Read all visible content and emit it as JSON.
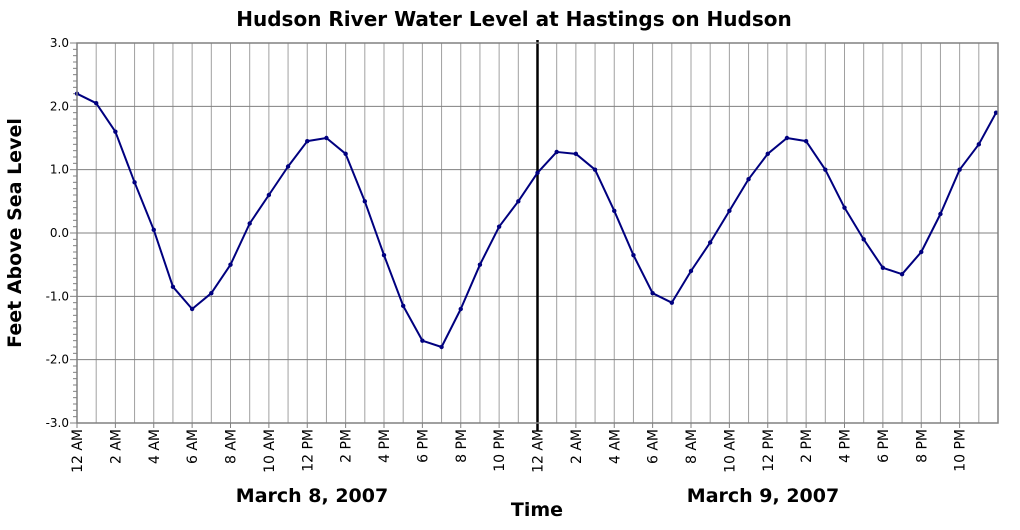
{
  "chart_data": {
    "type": "line",
    "title": "Hudson River Water Level at Hastings on Hudson",
    "xlabel": "Time",
    "ylabel": "Feet Above Sea Level",
    "ylim": [
      -3.0,
      3.0
    ],
    "yticks": [
      "3.0",
      "2.0",
      "1.0",
      "0.0",
      "-1.0",
      "-2.0",
      "-3.0"
    ],
    "xlim_hours": [
      0,
      48
    ],
    "xticks": [
      "12 AM",
      "2 AM",
      "4 AM",
      "6 AM",
      "8 AM",
      "10 AM",
      "12 PM",
      "2 PM",
      "4 PM",
      "6 PM",
      "8 PM",
      "10 PM",
      "12 AM",
      "2 AM",
      "4 AM",
      "6 AM",
      "8 AM",
      "10 AM",
      "12 PM",
      "2 PM",
      "4 PM",
      "6 PM",
      "8 PM",
      "10 PM"
    ],
    "date_labels": [
      "March 8, 2007",
      "March 9, 2007"
    ],
    "day_divider_hour": 24,
    "grid": true,
    "line_color": "#00007f",
    "series": [
      {
        "x_hours": [
          0,
          1,
          2,
          3,
          4,
          5,
          6,
          7,
          8,
          9,
          10,
          11,
          12,
          13,
          14,
          15,
          16,
          17,
          18,
          19,
          20,
          21,
          22,
          23,
          24,
          25,
          26,
          27,
          28,
          29,
          30,
          31,
          32,
          33,
          34,
          35,
          36,
          37,
          38,
          39,
          40,
          41,
          42,
          43,
          44,
          45,
          46,
          47,
          47.9
        ],
        "values": [
          2.2,
          2.05,
          1.6,
          0.8,
          0.05,
          -0.85,
          -1.2,
          -0.95,
          -0.5,
          0.15,
          0.6,
          1.05,
          1.45,
          1.5,
          1.25,
          0.5,
          -0.35,
          -1.15,
          -1.7,
          -1.8,
          -1.2,
          -0.5,
          0.1,
          0.5,
          0.95,
          1.28,
          1.25,
          1.0,
          0.35,
          -0.35,
          -0.95,
          -1.1,
          -0.6,
          -0.15,
          0.35,
          0.85,
          1.25,
          1.5,
          1.45,
          1.0,
          0.4,
          -0.1,
          -0.55,
          -0.65,
          -0.3,
          0.3,
          1.0,
          1.4,
          1.9
        ]
      }
    ]
  }
}
